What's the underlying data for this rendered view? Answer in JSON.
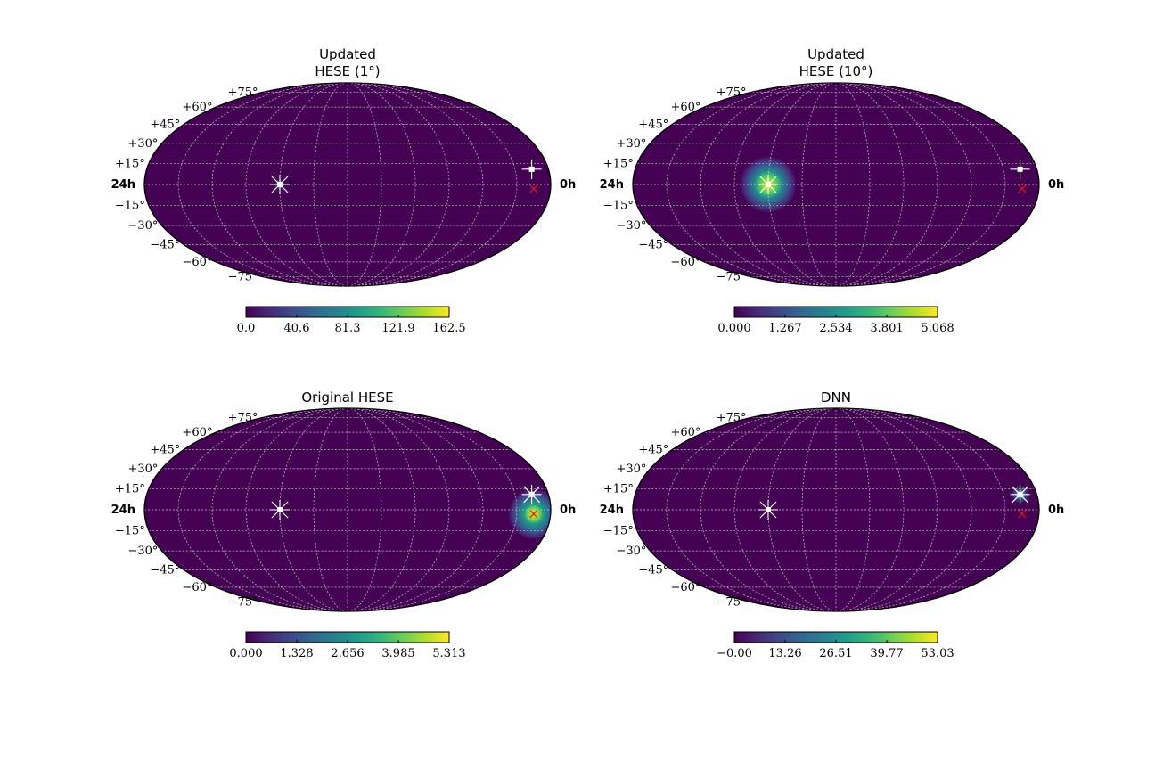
{
  "colors": {
    "background_map": "#440154",
    "grid": "#c9c9c9",
    "marker_white": "#ffffff",
    "marker_red": "#e8141c",
    "colormap": [
      "#440154",
      "#482878",
      "#3e4989",
      "#31688e",
      "#26828e",
      "#1f9e89",
      "#35b779",
      "#6ece58",
      "#b5de2b",
      "#fde725"
    ]
  },
  "icons": [
    "white-square-marker-icon",
    "white-x-marker-icon",
    "red-x-marker-icon"
  ],
  "chart_data": [
    {
      "type": "heatmap",
      "projection": "mollweide",
      "title_lines": [
        "Updated",
        "HESE (1°)"
      ],
      "dec_labels": [
        "+75°",
        "+60°",
        "+45°",
        "+30°",
        "+15°",
        "−15°",
        "−30°",
        "−45°",
        "−60°",
        "−75°"
      ],
      "dec_values": [
        75,
        60,
        45,
        30,
        15,
        -15,
        -30,
        -45,
        -60,
        -75
      ],
      "ra_labels": {
        "left": "24h",
        "right": "0h"
      },
      "colorbar": {
        "ticks": [
          "0.0",
          "40.6",
          "81.3",
          "121.9",
          "162.5"
        ],
        "min": 0,
        "max": 162.5
      },
      "hotspot": {
        "ra_h": 16.0,
        "dec": 0,
        "sigma_deg": 1.0,
        "peak": 1.0
      },
      "markers": [
        {
          "kind": "white-x",
          "ra_h": 16.0,
          "dec": 0
        },
        {
          "kind": "white-square",
          "ra_h": 16.0,
          "dec": 0
        },
        {
          "kind": "white-square",
          "ra_h": 1.0,
          "dec": 11
        },
        {
          "kind": "red-x",
          "ra_h": 1.0,
          "dec": -3
        }
      ]
    },
    {
      "type": "heatmap",
      "projection": "mollweide",
      "title_lines": [
        "Updated",
        "HESE (10°)"
      ],
      "dec_labels": [
        "+75°",
        "+60°",
        "+45°",
        "+30°",
        "+15°",
        "−15°",
        "−30°",
        "−45°",
        "−60°",
        "−75°"
      ],
      "dec_values": [
        75,
        60,
        45,
        30,
        15,
        -15,
        -30,
        -45,
        -60,
        -75
      ],
      "ra_labels": {
        "left": "24h",
        "right": "0h"
      },
      "colorbar": {
        "ticks": [
          "0.000",
          "1.267",
          "2.534",
          "3.801",
          "5.068"
        ],
        "min": 0,
        "max": 5.068
      },
      "hotspot": {
        "ra_h": 16.0,
        "dec": 0,
        "sigma_deg": 10.0,
        "peak": 0.92
      },
      "markers": [
        {
          "kind": "white-x",
          "ra_h": 16.0,
          "dec": 0
        },
        {
          "kind": "white-square",
          "ra_h": 16.0,
          "dec": 0
        },
        {
          "kind": "white-square",
          "ra_h": 1.0,
          "dec": 11
        },
        {
          "kind": "red-x",
          "ra_h": 1.0,
          "dec": -3
        }
      ]
    },
    {
      "type": "heatmap",
      "projection": "mollweide",
      "title_lines": [
        "Original HESE"
      ],
      "dec_labels": [
        "+75°",
        "+60°",
        "+45°",
        "+30°",
        "+15°",
        "−15°",
        "−30°",
        "−45°",
        "−60°",
        "−75°"
      ],
      "dec_values": [
        75,
        60,
        45,
        30,
        15,
        -15,
        -30,
        -45,
        -60,
        -75
      ],
      "ra_labels": {
        "left": "24h",
        "right": "0h"
      },
      "colorbar": {
        "ticks": [
          "0.000",
          "1.328",
          "2.656",
          "3.985",
          "5.313"
        ],
        "min": 0,
        "max": 5.313
      },
      "hotspot": {
        "ra_h": 1.0,
        "dec": -3,
        "sigma_deg": 9.0,
        "peak": 0.9
      },
      "markers": [
        {
          "kind": "white-x",
          "ra_h": 16.0,
          "dec": 0
        },
        {
          "kind": "white-square",
          "ra_h": 16.0,
          "dec": 0
        },
        {
          "kind": "white-x",
          "ra_h": 1.0,
          "dec": 11
        },
        {
          "kind": "white-square",
          "ra_h": 1.0,
          "dec": 11
        },
        {
          "kind": "red-x",
          "ra_h": 1.0,
          "dec": -3
        }
      ]
    },
    {
      "type": "heatmap",
      "projection": "mollweide",
      "title_lines": [
        "DNN"
      ],
      "dec_labels": [
        "+75°",
        "+60°",
        "+45°",
        "+30°",
        "+15°",
        "−15°",
        "−30°",
        "−45°",
        "−60°",
        "−75°"
      ],
      "dec_values": [
        75,
        60,
        45,
        30,
        15,
        -15,
        -30,
        -45,
        -60,
        -75
      ],
      "ra_labels": {
        "left": "24h",
        "right": "0h"
      },
      "colorbar": {
        "ticks": [
          "−0.00",
          "13.26",
          "26.51",
          "39.77",
          "53.03"
        ],
        "min": 0,
        "max": 53.03
      },
      "hotspot": {
        "ra_h": 1.0,
        "dec": 11,
        "sigma_deg": 3.0,
        "peak": 0.75
      },
      "markers": [
        {
          "kind": "white-x",
          "ra_h": 16.0,
          "dec": 0
        },
        {
          "kind": "white-square",
          "ra_h": 16.0,
          "dec": 0
        },
        {
          "kind": "white-x",
          "ra_h": 1.0,
          "dec": 11
        },
        {
          "kind": "white-square",
          "ra_h": 1.0,
          "dec": 11
        },
        {
          "kind": "red-x",
          "ra_h": 1.0,
          "dec": -3
        }
      ]
    }
  ]
}
